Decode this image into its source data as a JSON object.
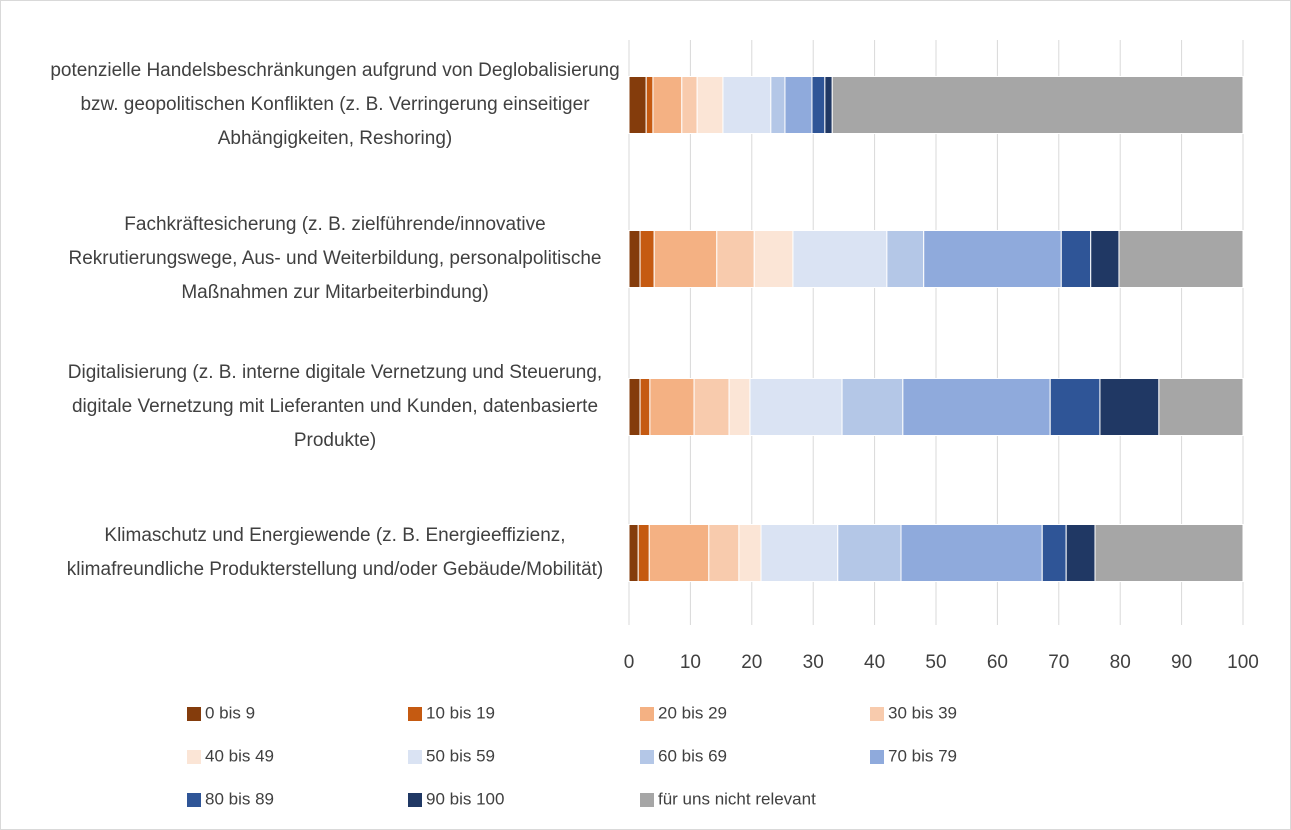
{
  "chart_data": {
    "type": "stacked_barh",
    "categories": [
      "potenzielle Handelsbeschränkungen aufgrund von Deglobalisierung bzw. geopolitischen Konflikten (z. B. Verringerung einseitiger Abhängigkeiten, Reshoring)",
      "Fachkräftesicherung (z. B. zielführende/innovative Rekrutierungswege, Aus- und Weiterbildung, personalpolitische Maßnahmen zur Mitarbeiterbindung)",
      "Digitalisierung (z. B. interne digitale Vernetzung und Steuerung, digitale Vernetzung mit Lieferanten und Kunden, datenbasierte Produkte)",
      "Klimaschutz und Energiewende (z. B. Energieeffizienz, klimafreundliche Produkterstellung und/oder Gebäude/Mobilität)"
    ],
    "series": [
      {
        "name": "0 bis 9",
        "color": "#843c0c",
        "values": [
          2.8,
          1.8,
          1.8,
          1.5
        ]
      },
      {
        "name": "10 bis 19",
        "color": "#c55a11",
        "values": [
          1.1,
          2.3,
          1.6,
          1.8
        ]
      },
      {
        "name": "20 bis 29",
        "color": "#f4b183",
        "values": [
          4.7,
          10.2,
          7.2,
          9.7
        ]
      },
      {
        "name": "30 bis 39",
        "color": "#f8cbad",
        "values": [
          2.5,
          6.1,
          5.7,
          4.9
        ]
      },
      {
        "name": "40 bis 49",
        "color": "#fbe5d6",
        "values": [
          4.2,
          6.3,
          3.4,
          3.6
        ]
      },
      {
        "name": "50 bis 59",
        "color": "#dae3f3",
        "values": [
          7.8,
          15.3,
          15.0,
          12.5
        ]
      },
      {
        "name": "60 bis 69",
        "color": "#b4c7e7",
        "values": [
          2.3,
          6.0,
          9.9,
          10.3
        ]
      },
      {
        "name": "70 bis 79",
        "color": "#8faadc",
        "values": [
          4.4,
          22.4,
          24.0,
          23.0
        ]
      },
      {
        "name": "80 bis 89",
        "color": "#2f5597",
        "values": [
          2.1,
          4.8,
          8.1,
          3.9
        ]
      },
      {
        "name": "90 bis 100",
        "color": "#203864",
        "values": [
          1.2,
          4.6,
          9.6,
          4.7
        ]
      },
      {
        "name": "für uns nicht relevant",
        "color": "#a6a6a6",
        "values": [
          66.9,
          20.2,
          13.7,
          24.1
        ]
      }
    ],
    "xlim": [
      0,
      100
    ],
    "xticks": [
      0,
      10,
      20,
      30,
      40,
      50,
      60,
      70,
      80,
      90,
      100
    ],
    "grid": true
  }
}
